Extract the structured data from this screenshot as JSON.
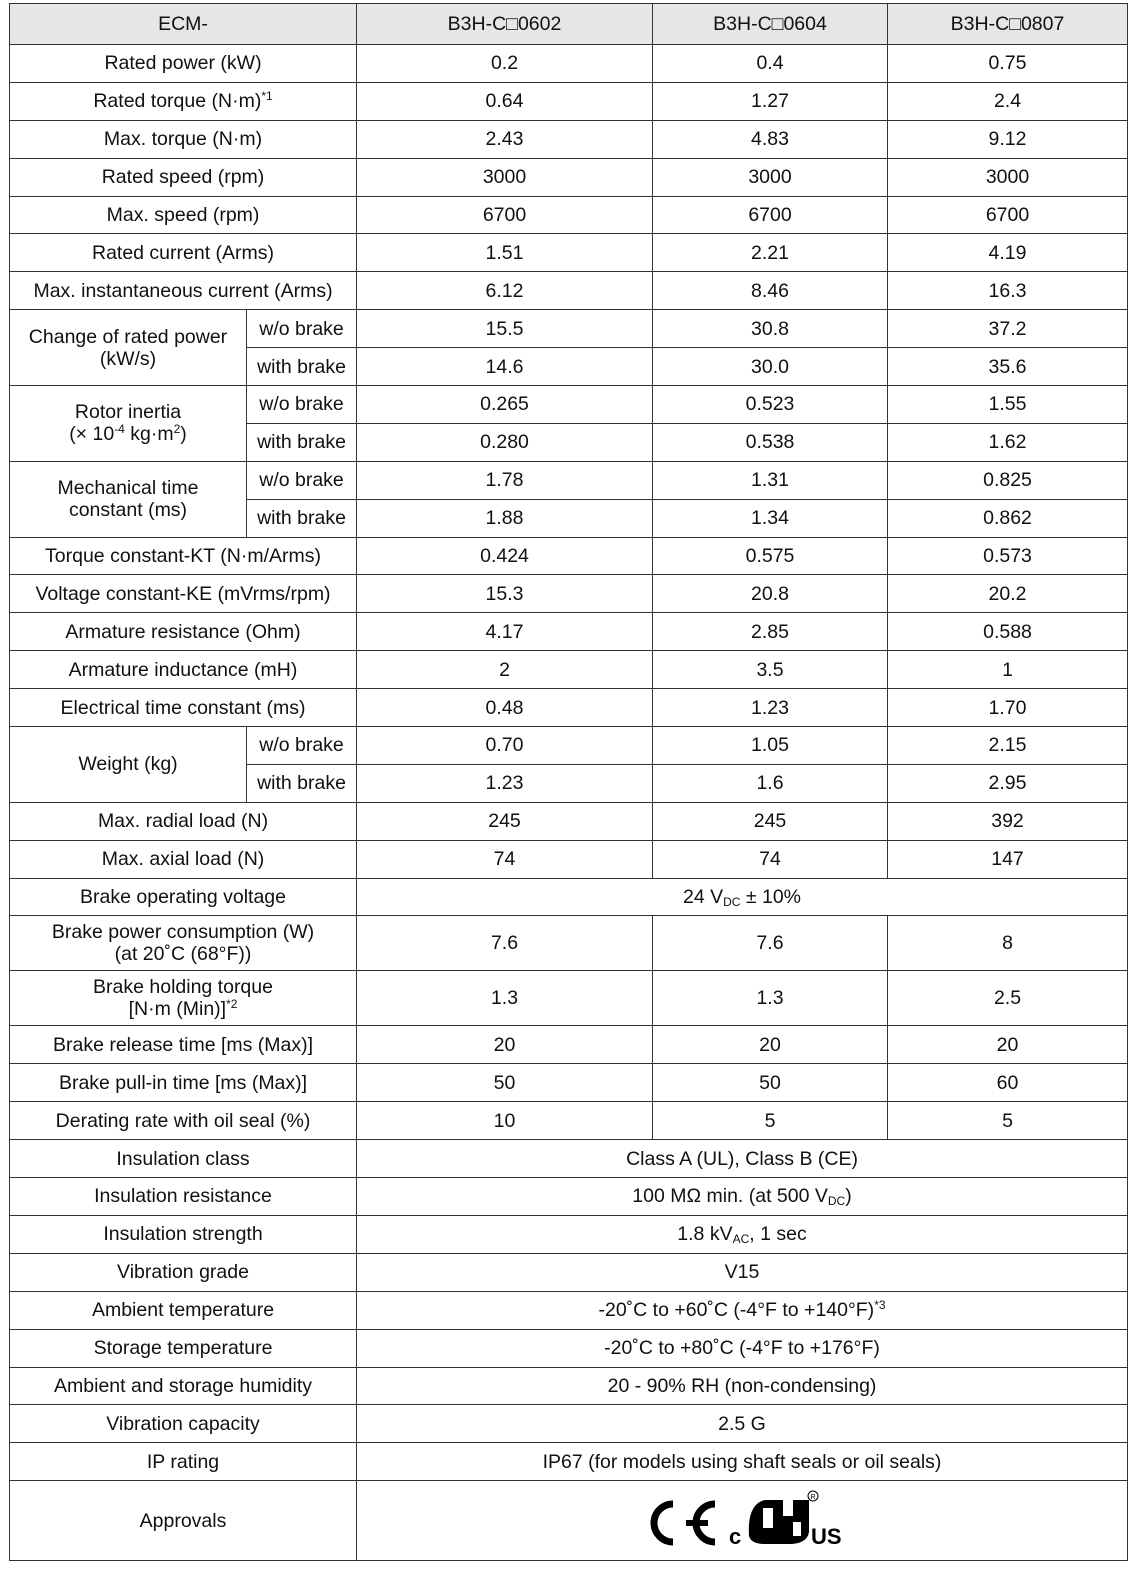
{
  "header": {
    "series_prefix": "ECM-",
    "models": [
      "B3H-C□0602",
      "B3H-C□0604",
      "B3H-C□0807"
    ]
  },
  "rows": {
    "rated_power": {
      "label": "Rated power (kW)",
      "values": [
        "0.2",
        "0.4",
        "0.75"
      ]
    },
    "rated_torque": {
      "label": "Rated torque (N·m)",
      "note": "*1",
      "values": [
        "0.64",
        "1.27",
        "2.4"
      ]
    },
    "max_torque": {
      "label": "Max. torque (N·m)",
      "values": [
        "2.43",
        "4.83",
        "9.12"
      ]
    },
    "rated_speed": {
      "label": "Rated speed (rpm)",
      "values": [
        "3000",
        "3000",
        "3000"
      ]
    },
    "max_speed": {
      "label": "Max. speed (rpm)",
      "values": [
        "6700",
        "6700",
        "6700"
      ]
    },
    "rated_current": {
      "label": "Rated current (Arms)",
      "values": [
        "1.51",
        "2.21",
        "4.19"
      ]
    },
    "max_inst_current": {
      "label": "Max. instantaneous current (Arms)",
      "values": [
        "6.12",
        "8.46",
        "16.3"
      ]
    },
    "change_rated_power": {
      "label_line1": "Change of rated power",
      "label_line2": "(kW/s)",
      "wo_brake": {
        "label": "w/o brake",
        "values": [
          "15.5",
          "30.8",
          "37.2"
        ]
      },
      "with_brake": {
        "label": "with brake",
        "values": [
          "14.6",
          "30.0",
          "35.6"
        ]
      }
    },
    "rotor_inertia": {
      "label_line1": "Rotor inertia",
      "label_prefix": "(× 10",
      "label_exp": "-4",
      "label_mid": " kg·m",
      "label_exp2": "2",
      "label_suffix": ")",
      "wo_brake": {
        "label": "w/o brake",
        "values": [
          "0.265",
          "0.523",
          "1.55"
        ]
      },
      "with_brake": {
        "label": "with brake",
        "values": [
          "0.280",
          "0.538",
          "1.62"
        ]
      }
    },
    "mech_time_const": {
      "label_line1": "Mechanical time",
      "label_line2": "constant (ms)",
      "wo_brake": {
        "label": "w/o brake",
        "values": [
          "1.78",
          "1.31",
          "0.825"
        ]
      },
      "with_brake": {
        "label": "with brake",
        "values": [
          "1.88",
          "1.34",
          "0.862"
        ]
      }
    },
    "torque_const": {
      "label": "Torque constant-KT (N·m/Arms)",
      "values": [
        "0.424",
        "0.575",
        "0.573"
      ]
    },
    "voltage_const": {
      "label": "Voltage constant-KE (mVrms/rpm)",
      "values": [
        "15.3",
        "20.8",
        "20.2"
      ]
    },
    "armature_resistance": {
      "label": "Armature resistance (Ohm)",
      "values": [
        "4.17",
        "2.85",
        "0.588"
      ]
    },
    "armature_inductance": {
      "label": "Armature inductance (mH)",
      "values": [
        "2",
        "3.5",
        "1"
      ]
    },
    "elec_time_const": {
      "label": "Electrical time constant (ms)",
      "values": [
        "0.48",
        "1.23",
        "1.70"
      ]
    },
    "weight": {
      "label": "Weight (kg)",
      "wo_brake": {
        "label": "w/o brake",
        "values": [
          "0.70",
          "1.05",
          "2.15"
        ]
      },
      "with_brake": {
        "label": "with brake",
        "values": [
          "1.23",
          "1.6",
          "2.95"
        ]
      }
    },
    "max_radial_load": {
      "label": "Max. radial load (N)",
      "values": [
        "245",
        "245",
        "392"
      ]
    },
    "max_axial_load": {
      "label": "Max. axial load (N)",
      "values": [
        "74",
        "74",
        "147"
      ]
    },
    "brake_voltage": {
      "label": "Brake operating voltage",
      "value_prefix": "24 V",
      "value_sub": "DC",
      "value_suffix": " ± 10%"
    },
    "brake_power": {
      "label_line1": "Brake power consumption (W)",
      "label_line2": "(at 20˚C (68°F))",
      "values": [
        "7.6",
        "7.6",
        "8"
      ]
    },
    "brake_holding_torque": {
      "label_line1": "Brake holding torque",
      "label_line2": "[N·m (Min)]",
      "note": "*2",
      "values": [
        "1.3",
        "1.3",
        "2.5"
      ]
    },
    "brake_release_time": {
      "label": "Brake release time [ms (Max)]",
      "values": [
        "20",
        "20",
        "20"
      ]
    },
    "brake_pullin_time": {
      "label": "Brake pull-in time [ms (Max)]",
      "values": [
        "50",
        "50",
        "60"
      ]
    },
    "derating_oil_seal": {
      "label": "Derating rate with oil seal (%)",
      "values": [
        "10",
        "5",
        "5"
      ]
    },
    "insulation_class": {
      "label": "Insulation class",
      "value": "Class A (UL), Class B (CE)"
    },
    "insulation_resistance": {
      "label": "Insulation resistance",
      "value_prefix": "100 MΩ min. (at 500 V",
      "value_sub": "DC",
      "value_suffix": ")"
    },
    "insulation_strength": {
      "label": "Insulation strength",
      "value_prefix": "1.8 kV",
      "value_sub": "AC",
      "value_suffix": ", 1 sec"
    },
    "vibration_grade": {
      "label": "Vibration grade",
      "value": "V15"
    },
    "ambient_temp": {
      "label": "Ambient temperature",
      "value": "-20˚C to +60˚C (-4°F to +140°F)",
      "note": "*3"
    },
    "storage_temp": {
      "label": "Storage temperature",
      "value": "-20˚C to +80˚C (-4°F to +176°F)"
    },
    "humidity": {
      "label": "Ambient and storage humidity",
      "value": "20 - 90% RH (non-condensing)"
    },
    "vibration_capacity": {
      "label": "Vibration capacity",
      "value": "2.5 G"
    },
    "ip_rating": {
      "label": "IP rating",
      "value": "IP67 (for models using shaft seals or oil seals)"
    },
    "approvals": {
      "label": "Approvals",
      "marks": [
        {
          "name": "CE mark",
          "icon": "ce-mark-icon",
          "text": "CE"
        },
        {
          "name": "cULus listed mark",
          "icon": "culus-mark-icon",
          "text": "cULus"
        }
      ]
    }
  }
}
